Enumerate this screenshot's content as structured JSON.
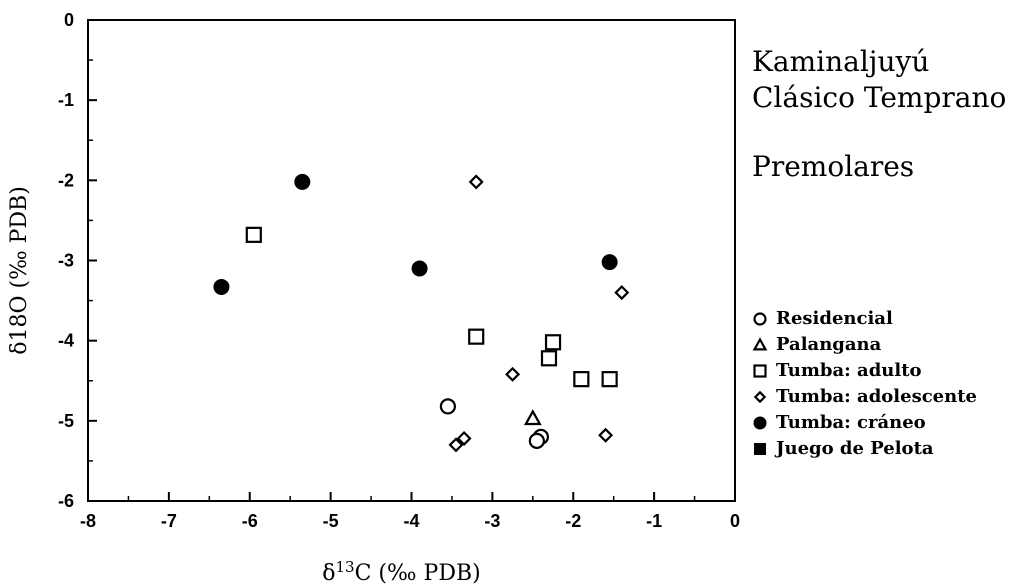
{
  "chart_data": {
    "type": "scatter",
    "title": "Kaminaljuyú",
    "title2": "Clásico Temprano",
    "subtitle": "Premolares",
    "xlabel_main": "δ",
    "xlabel_sup": "13",
    "xlabel_rest": "C  (‰ PDB)",
    "ylabel": "δ18O  (‰ PDB)",
    "xlim": [
      -8,
      0
    ],
    "ylim": [
      -6,
      0
    ],
    "xticks": [
      "-8",
      "-7",
      "-6",
      "-5",
      "-4",
      "-3",
      "-2",
      "-1",
      "0"
    ],
    "yticks": [
      "0",
      "-1",
      "-2",
      "-3",
      "-4",
      "-5",
      "-6"
    ],
    "legend_position": "right",
    "series": [
      {
        "name": "Residencial",
        "marker": "circle-open",
        "points": [
          [
            -3.55,
            -4.82
          ],
          [
            -2.4,
            -5.2
          ],
          [
            -2.45,
            -5.25
          ]
        ]
      },
      {
        "name": "Palangana",
        "marker": "triangle-open",
        "points": [
          [
            -2.5,
            -4.97
          ]
        ]
      },
      {
        "name": "Tumba: adulto",
        "marker": "square-open",
        "points": [
          [
            -5.95,
            -2.68
          ],
          [
            -3.2,
            -3.95
          ],
          [
            -2.25,
            -4.02
          ],
          [
            -2.3,
            -4.22
          ],
          [
            -1.9,
            -4.48
          ],
          [
            -1.55,
            -4.48
          ]
        ]
      },
      {
        "name": "Tumba: adolescente",
        "marker": "diamond-open",
        "points": [
          [
            -3.2,
            -2.02
          ],
          [
            -2.75,
            -4.42
          ],
          [
            -3.35,
            -5.22
          ],
          [
            -3.45,
            -5.3
          ],
          [
            -1.6,
            -5.18
          ],
          [
            -1.4,
            -3.4
          ]
        ]
      },
      {
        "name": "Tumba: cráneo",
        "marker": "circle-filled",
        "points": [
          [
            -5.35,
            -2.02
          ],
          [
            -6.35,
            -3.33
          ],
          [
            -3.9,
            -3.1
          ],
          [
            -1.55,
            -3.02
          ]
        ]
      },
      {
        "name": "Juego de Pelota",
        "marker": "square-filled",
        "points": []
      }
    ]
  }
}
